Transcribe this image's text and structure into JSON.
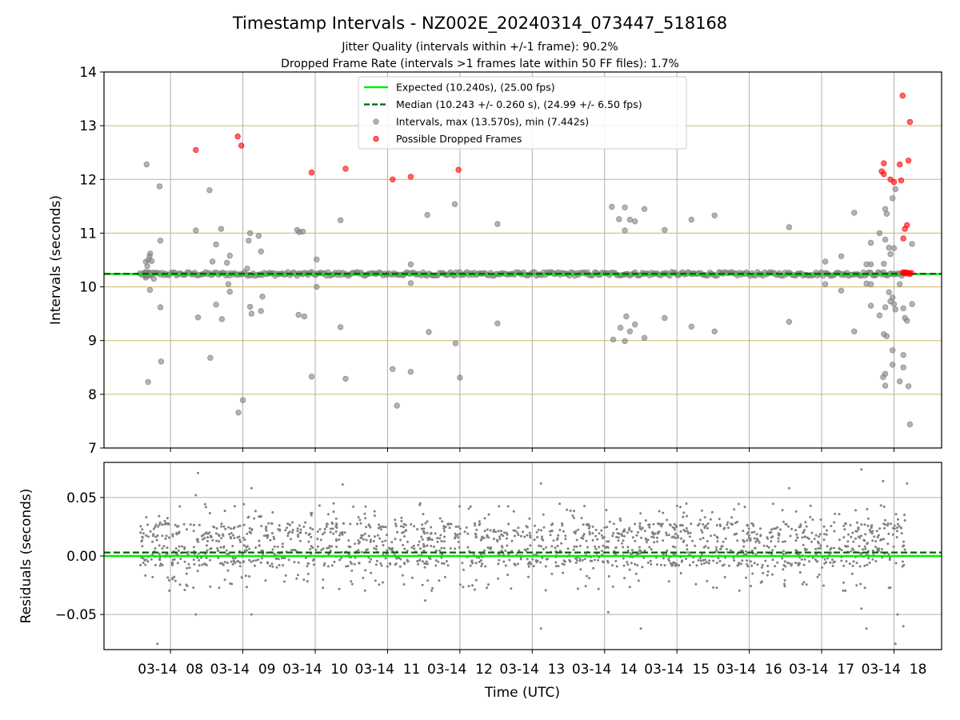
{
  "chart_data": {
    "type": "scatter",
    "title": "Timestamp Intervals - NZ002E_20240314_073447_518168",
    "subtitle_1": "Jitter Quality (intervals within +/-1 frame): 90.2%",
    "subtitle_2": "Dropped Frame Rate (intervals >1 frames late within 50 FF files): 1.7%",
    "xlabel": "Time (UTC)",
    "x_ticks": [
      "03-14  08",
      "03-14  09",
      "03-14  10",
      "03-14  11",
      "03-14  12",
      "03-14  13",
      "03-14  14",
      "03-14  15",
      "03-14  16",
      "03-14  17",
      "03-14  18"
    ],
    "x_tick_hours": [
      8,
      9,
      10,
      11,
      12,
      13,
      14,
      15,
      16,
      17,
      18
    ],
    "xlim_hours": [
      7.081,
      18.658
    ],
    "data_hours": [
      7.578,
      18.158
    ],
    "colors": {
      "expected": "#00ee00",
      "median": "#006400",
      "intervals": "#808080",
      "dropped": "#ff0000",
      "gold_grid": "#c9b66b",
      "grey_grid": "#b0b0b0"
    },
    "panels": [
      {
        "id": "intervals",
        "ylabel": "Intervals (seconds)",
        "ylim": [
          7,
          14
        ],
        "y_ticks": [
          "7",
          "8",
          "9",
          "10",
          "11",
          "12",
          "13",
          "14"
        ],
        "expected": 10.24,
        "median": 10.243,
        "legend": {
          "position": "upper center",
          "entries": [
            {
              "label": "Expected (10.240s), (25.00 fps)",
              "style": "solid-line",
              "color": "#00ee00"
            },
            {
              "label": "Median (10.243 +/- 0.260 s), (24.99 +/- 6.50 fps)",
              "style": "dashed-line",
              "color": "#006400"
            },
            {
              "label": "Intervals, max (13.570s), min (7.442s)",
              "style": "marker",
              "color": "#808080"
            },
            {
              "label": "Possible Dropped Frames",
              "style": "marker",
              "color": "#ff0000"
            }
          ]
        },
        "outliers": [
          [
            7.67,
            12.28
          ],
          [
            7.69,
            8.23
          ],
          [
            7.72,
            10.62
          ],
          [
            7.74,
            10.48
          ],
          [
            7.77,
            10.15
          ],
          [
            7.85,
            11.87
          ],
          [
            7.86,
            10.86
          ],
          [
            7.86,
            9.62
          ],
          [
            7.87,
            8.61
          ],
          [
            8.35,
            11.05
          ],
          [
            8.38,
            9.43
          ],
          [
            8.54,
            11.8
          ],
          [
            8.55,
            8.68
          ],
          [
            8.58,
            10.47
          ],
          [
            8.63,
            10.79
          ],
          [
            8.63,
            9.67
          ],
          [
            8.7,
            11.08
          ],
          [
            8.71,
            9.4
          ],
          [
            8.78,
            10.45
          ],
          [
            8.8,
            10.05
          ],
          [
            8.82,
            10.58
          ],
          [
            8.82,
            9.91
          ],
          [
            8.94,
            7.66
          ],
          [
            9.0,
            7.89
          ],
          [
            9.06,
            10.34
          ],
          [
            9.08,
            10.86
          ],
          [
            9.1,
            11.0
          ],
          [
            9.1,
            9.63
          ],
          [
            9.12,
            9.5
          ],
          [
            9.22,
            10.95
          ],
          [
            9.25,
            10.66
          ],
          [
            9.25,
            9.55
          ],
          [
            9.27,
            9.82
          ],
          [
            9.75,
            11.06
          ],
          [
            9.77,
            9.48
          ],
          [
            9.78,
            11.02
          ],
          [
            9.83,
            11.03
          ],
          [
            9.85,
            9.45
          ],
          [
            9.95,
            8.33
          ],
          [
            10.02,
            10.51
          ],
          [
            10.02,
            10.0
          ],
          [
            10.35,
            11.24
          ],
          [
            10.35,
            9.25
          ],
          [
            10.42,
            8.29
          ],
          [
            11.07,
            8.47
          ],
          [
            11.13,
            7.79
          ],
          [
            11.32,
            10.42
          ],
          [
            11.32,
            10.07
          ],
          [
            11.32,
            8.42
          ],
          [
            11.55,
            11.34
          ],
          [
            11.57,
            9.16
          ],
          [
            11.93,
            11.54
          ],
          [
            11.94,
            8.95
          ],
          [
            12.0,
            8.31
          ],
          [
            12.52,
            11.17
          ],
          [
            12.52,
            9.32
          ],
          [
            14.1,
            11.49
          ],
          [
            14.12,
            9.02
          ],
          [
            14.2,
            11.26
          ],
          [
            14.22,
            9.24
          ],
          [
            14.28,
            11.48
          ],
          [
            14.28,
            11.05
          ],
          [
            14.28,
            8.99
          ],
          [
            14.3,
            9.45
          ],
          [
            14.35,
            11.25
          ],
          [
            14.35,
            9.17
          ],
          [
            14.42,
            11.22
          ],
          [
            14.42,
            9.3
          ],
          [
            14.55,
            11.45
          ],
          [
            14.55,
            9.05
          ],
          [
            14.83,
            11.06
          ],
          [
            14.83,
            9.42
          ],
          [
            15.2,
            11.25
          ],
          [
            15.2,
            9.26
          ],
          [
            15.52,
            11.33
          ],
          [
            15.52,
            9.17
          ],
          [
            16.55,
            11.11
          ],
          [
            16.55,
            9.35
          ],
          [
            17.05,
            10.47
          ],
          [
            17.05,
            10.05
          ],
          [
            17.27,
            10.57
          ],
          [
            17.27,
            9.93
          ],
          [
            17.45,
            11.38
          ],
          [
            17.45,
            9.17
          ],
          [
            17.62,
            10.42
          ],
          [
            17.62,
            10.06
          ],
          [
            17.68,
            10.82
          ],
          [
            17.68,
            9.65
          ],
          [
            17.68,
            10.42
          ],
          [
            17.68,
            10.05
          ],
          [
            17.8,
            11.0
          ],
          [
            17.8,
            9.47
          ],
          [
            17.86,
            10.43
          ],
          [
            17.86,
            9.12
          ],
          [
            17.88,
            11.45
          ],
          [
            17.88,
            10.88
          ],
          [
            17.88,
            9.62
          ],
          [
            17.9,
            11.36
          ],
          [
            17.9,
            9.08
          ],
          [
            17.93,
            10.73
          ],
          [
            17.93,
            9.9
          ],
          [
            17.95,
            10.61
          ],
          [
            17.95,
            9.73
          ],
          [
            17.98,
            11.65
          ],
          [
            17.98,
            9.8
          ],
          [
            17.98,
            8.82
          ],
          [
            17.98,
            8.55
          ],
          [
            18.0,
            10.72
          ],
          [
            18.0,
            9.68
          ],
          [
            18.02,
            11.82
          ],
          [
            18.02,
            9.58
          ],
          [
            17.88,
            8.38
          ],
          [
            17.85,
            8.32
          ],
          [
            17.88,
            8.16
          ],
          [
            18.08,
            10.05
          ],
          [
            18.08,
            8.24
          ],
          [
            18.13,
            9.6
          ],
          [
            18.13,
            8.73
          ],
          [
            18.13,
            8.5
          ],
          [
            18.15,
            9.42
          ],
          [
            18.18,
            9.37
          ],
          [
            18.2,
            8.15
          ],
          [
            18.22,
            7.44
          ],
          [
            18.25,
            10.8
          ],
          [
            18.25,
            9.68
          ]
        ],
        "dropped": [
          [
            8.35,
            12.55
          ],
          [
            8.93,
            12.8
          ],
          [
            8.98,
            12.63
          ],
          [
            9.95,
            12.13
          ],
          [
            10.42,
            12.2
          ],
          [
            11.07,
            12.0
          ],
          [
            11.32,
            12.05
          ],
          [
            11.98,
            12.18
          ],
          [
            17.83,
            12.15
          ],
          [
            17.86,
            12.1
          ],
          [
            17.86,
            12.3
          ],
          [
            17.95,
            12.0
          ],
          [
            18.0,
            11.95
          ],
          [
            18.08,
            12.28
          ],
          [
            18.1,
            11.98
          ],
          [
            18.12,
            13.56
          ],
          [
            18.13,
            10.9
          ],
          [
            18.15,
            11.08
          ],
          [
            18.18,
            11.15
          ],
          [
            18.2,
            12.35
          ],
          [
            18.22,
            13.07
          ],
          [
            18.12,
            10.27
          ],
          [
            18.14,
            10.26
          ],
          [
            18.16,
            10.27
          ],
          [
            18.18,
            10.25
          ],
          [
            18.2,
            10.26
          ],
          [
            18.22,
            10.24
          ],
          [
            18.24,
            10.26
          ]
        ]
      },
      {
        "id": "residuals",
        "ylabel": "Residuals (seconds)",
        "ylim": [
          -0.08,
          0.08
        ],
        "y_ticks": [
          "−0.05",
          "0.00",
          "0.05"
        ],
        "y_tick_values": [
          -0.05,
          0.0,
          0.05
        ],
        "expected": 0.0,
        "median": 0.003,
        "residual_band": [
          -0.03,
          0.045
        ],
        "residual_outliers": [
          [
            7.82,
            -0.075
          ],
          [
            8.38,
            0.071
          ],
          [
            8.35,
            -0.05
          ],
          [
            8.35,
            0.052
          ],
          [
            9.12,
            -0.05
          ],
          [
            9.12,
            0.058
          ],
          [
            10.38,
            0.061
          ],
          [
            11.52,
            -0.038
          ],
          [
            13.12,
            0.062
          ],
          [
            13.12,
            -0.062
          ],
          [
            14.05,
            -0.048
          ],
          [
            14.5,
            -0.062
          ],
          [
            16.55,
            0.058
          ],
          [
            17.55,
            -0.045
          ],
          [
            17.55,
            0.074
          ],
          [
            17.62,
            -0.062
          ],
          [
            17.85,
            0.064
          ],
          [
            18.02,
            -0.075
          ],
          [
            18.05,
            -0.05
          ],
          [
            18.13,
            -0.06
          ],
          [
            18.18,
            0.062
          ]
        ]
      }
    ]
  }
}
